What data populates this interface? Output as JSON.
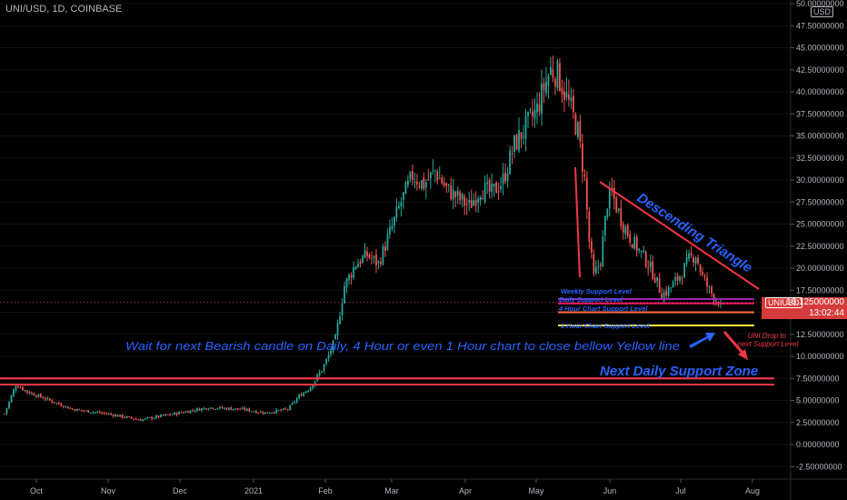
{
  "header": {
    "symbol": "UNI/USD, 1D, COINBASE",
    "currency_badge": "USD"
  },
  "price_tag": {
    "symbol": "UNIUSD",
    "price": "16.125000000",
    "countdown": "13:02:44"
  },
  "colors": {
    "background": "#000000",
    "up_candle": "#26a69a",
    "down_candle": "#ef5350",
    "annotation_red": "#f23645",
    "annotation_blue": "#2962ff",
    "weekly_support": "#9c27b0",
    "daily_support": "#e91e63",
    "four_hour_support": "#ff7043",
    "one_hour_support": "#ffeb3b"
  },
  "chart_data": {
    "type": "candlestick",
    "title": "UNI/USD, 1D, COINBASE",
    "x_ticks": [
      "Oct",
      "Nov",
      "Dec",
      "2021",
      "Feb",
      "Mar",
      "Apr",
      "May",
      "Jun",
      "Jul",
      "Aug"
    ],
    "y_ticks": [
      "50.00000000",
      "47.50000000",
      "45.00000000",
      "42.50000000",
      "40.00000000",
      "37.50000000",
      "35.00000000",
      "32.50000000",
      "30.00000000",
      "27.50000000",
      "25.00000000",
      "22.50000000",
      "20.00000000",
      "17.50000000",
      "15.00000000",
      "12.50000000",
      "10.00000000",
      "7.50000000",
      "5.00000000",
      "2.50000000",
      "0.00000000",
      "-2.50000000"
    ],
    "ylim": [
      -3.5,
      50
    ],
    "current_price": 16.125,
    "series_anchors_close": [
      [
        0,
        3.5
      ],
      [
        5,
        6.8
      ],
      [
        10,
        6.0
      ],
      [
        20,
        5.0
      ],
      [
        30,
        4.0
      ],
      [
        45,
        3.5
      ],
      [
        60,
        2.8
      ],
      [
        75,
        3.5
      ],
      [
        90,
        4.2
      ],
      [
        105,
        4.0
      ],
      [
        115,
        3.6
      ],
      [
        125,
        4.0
      ],
      [
        130,
        5.5
      ],
      [
        135,
        6.5
      ],
      [
        140,
        8.5
      ],
      [
        142,
        9.5
      ],
      [
        146,
        12.0
      ],
      [
        150,
        18.0
      ],
      [
        155,
        20.5
      ],
      [
        160,
        21.5
      ],
      [
        165,
        20.5
      ],
      [
        170,
        24.0
      ],
      [
        175,
        27.5
      ],
      [
        180,
        30.5
      ],
      [
        185,
        29.5
      ],
      [
        190,
        31.0
      ],
      [
        195,
        29.0
      ],
      [
        200,
        28.0
      ],
      [
        205,
        27.0
      ],
      [
        210,
        29.0
      ],
      [
        215,
        28.5
      ],
      [
        220,
        30.0
      ],
      [
        225,
        34.0
      ],
      [
        230,
        36.0
      ],
      [
        235,
        38.0
      ],
      [
        238,
        40.5
      ],
      [
        241,
        42.5
      ],
      [
        244,
        42.0
      ],
      [
        247,
        40.0
      ],
      [
        250,
        38.0
      ],
      [
        253,
        35.5
      ],
      [
        256,
        30.0
      ],
      [
        258,
        23.0
      ],
      [
        260,
        19.0
      ],
      [
        263,
        21.0
      ],
      [
        266,
        27.5
      ],
      [
        268,
        28.5
      ],
      [
        270,
        27.0
      ],
      [
        273,
        25.0
      ],
      [
        276,
        23.5
      ],
      [
        280,
        22.0
      ],
      [
        284,
        20.5
      ],
      [
        287,
        19.0
      ],
      [
        290,
        17.0
      ],
      [
        293,
        17.5
      ],
      [
        296,
        18.5
      ],
      [
        299,
        19.5
      ],
      [
        302,
        21.0
      ],
      [
        305,
        21.5
      ],
      [
        308,
        19.0
      ],
      [
        311,
        17.5
      ],
      [
        314,
        16.5
      ],
      [
        316,
        16.125
      ]
    ],
    "annotations": [
      {
        "label": "Weekly Support Level",
        "y": 16.5
      },
      {
        "label": "Daily Support Level",
        "y": 16.0
      },
      {
        "label": "4 Hour Chart Support Level",
        "y": 15.0
      },
      {
        "label": "1 Hour Chart Support Level",
        "y": 13.5
      },
      {
        "label": "Descending Triangle"
      },
      {
        "label": "Wait for next Bearish candle on Daily, 4 Hour or even 1 Hour chart to close bellow Yellow line"
      },
      {
        "label": "Next Daily Support Zone",
        "y_range": [
          6.8,
          7.5
        ]
      },
      {
        "label": "UNI Drop to next Support Level"
      }
    ]
  }
}
